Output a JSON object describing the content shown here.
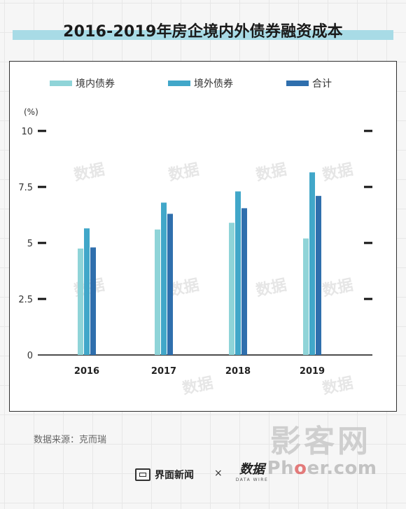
{
  "title": "2016-2019年房企境内外债券融资成本",
  "source": "数据来源：克而瑞",
  "footer": {
    "brand1": "界面新闻",
    "separator": "×",
    "brand2": "数据",
    "brand2_sub": "DATA WIRE"
  },
  "watermark": {
    "text": "数据",
    "site": "影客网",
    "url_prefix": "Ph",
    "url_dot": "o",
    "url_suffix": "er.com"
  },
  "colors": {
    "title_band": "#a8dbe6",
    "domestic": "#8fd4d8",
    "overseas": "#41a7c9",
    "total": "#2f6fad"
  },
  "chart_data": {
    "type": "bar",
    "ylabel": "(%)",
    "ylim": [
      0,
      10
    ],
    "yticks": [
      0,
      2.5,
      5,
      7.5,
      10
    ],
    "ytick_labels": [
      "0",
      "2.5",
      "5",
      "7.5",
      "10"
    ],
    "categories": [
      "2016",
      "2017",
      "2018",
      "2019"
    ],
    "legend_position": "top",
    "grid": false,
    "series": [
      {
        "name": "境内债券",
        "color": "#8fd4d8",
        "values": [
          4.75,
          5.6,
          5.9,
          5.2
        ]
      },
      {
        "name": "境外债券",
        "color": "#41a7c9",
        "values": [
          5.65,
          6.8,
          7.3,
          8.15
        ]
      },
      {
        "name": "合计",
        "color": "#2f6fad",
        "values": [
          4.8,
          6.3,
          6.55,
          7.1
        ]
      }
    ]
  }
}
